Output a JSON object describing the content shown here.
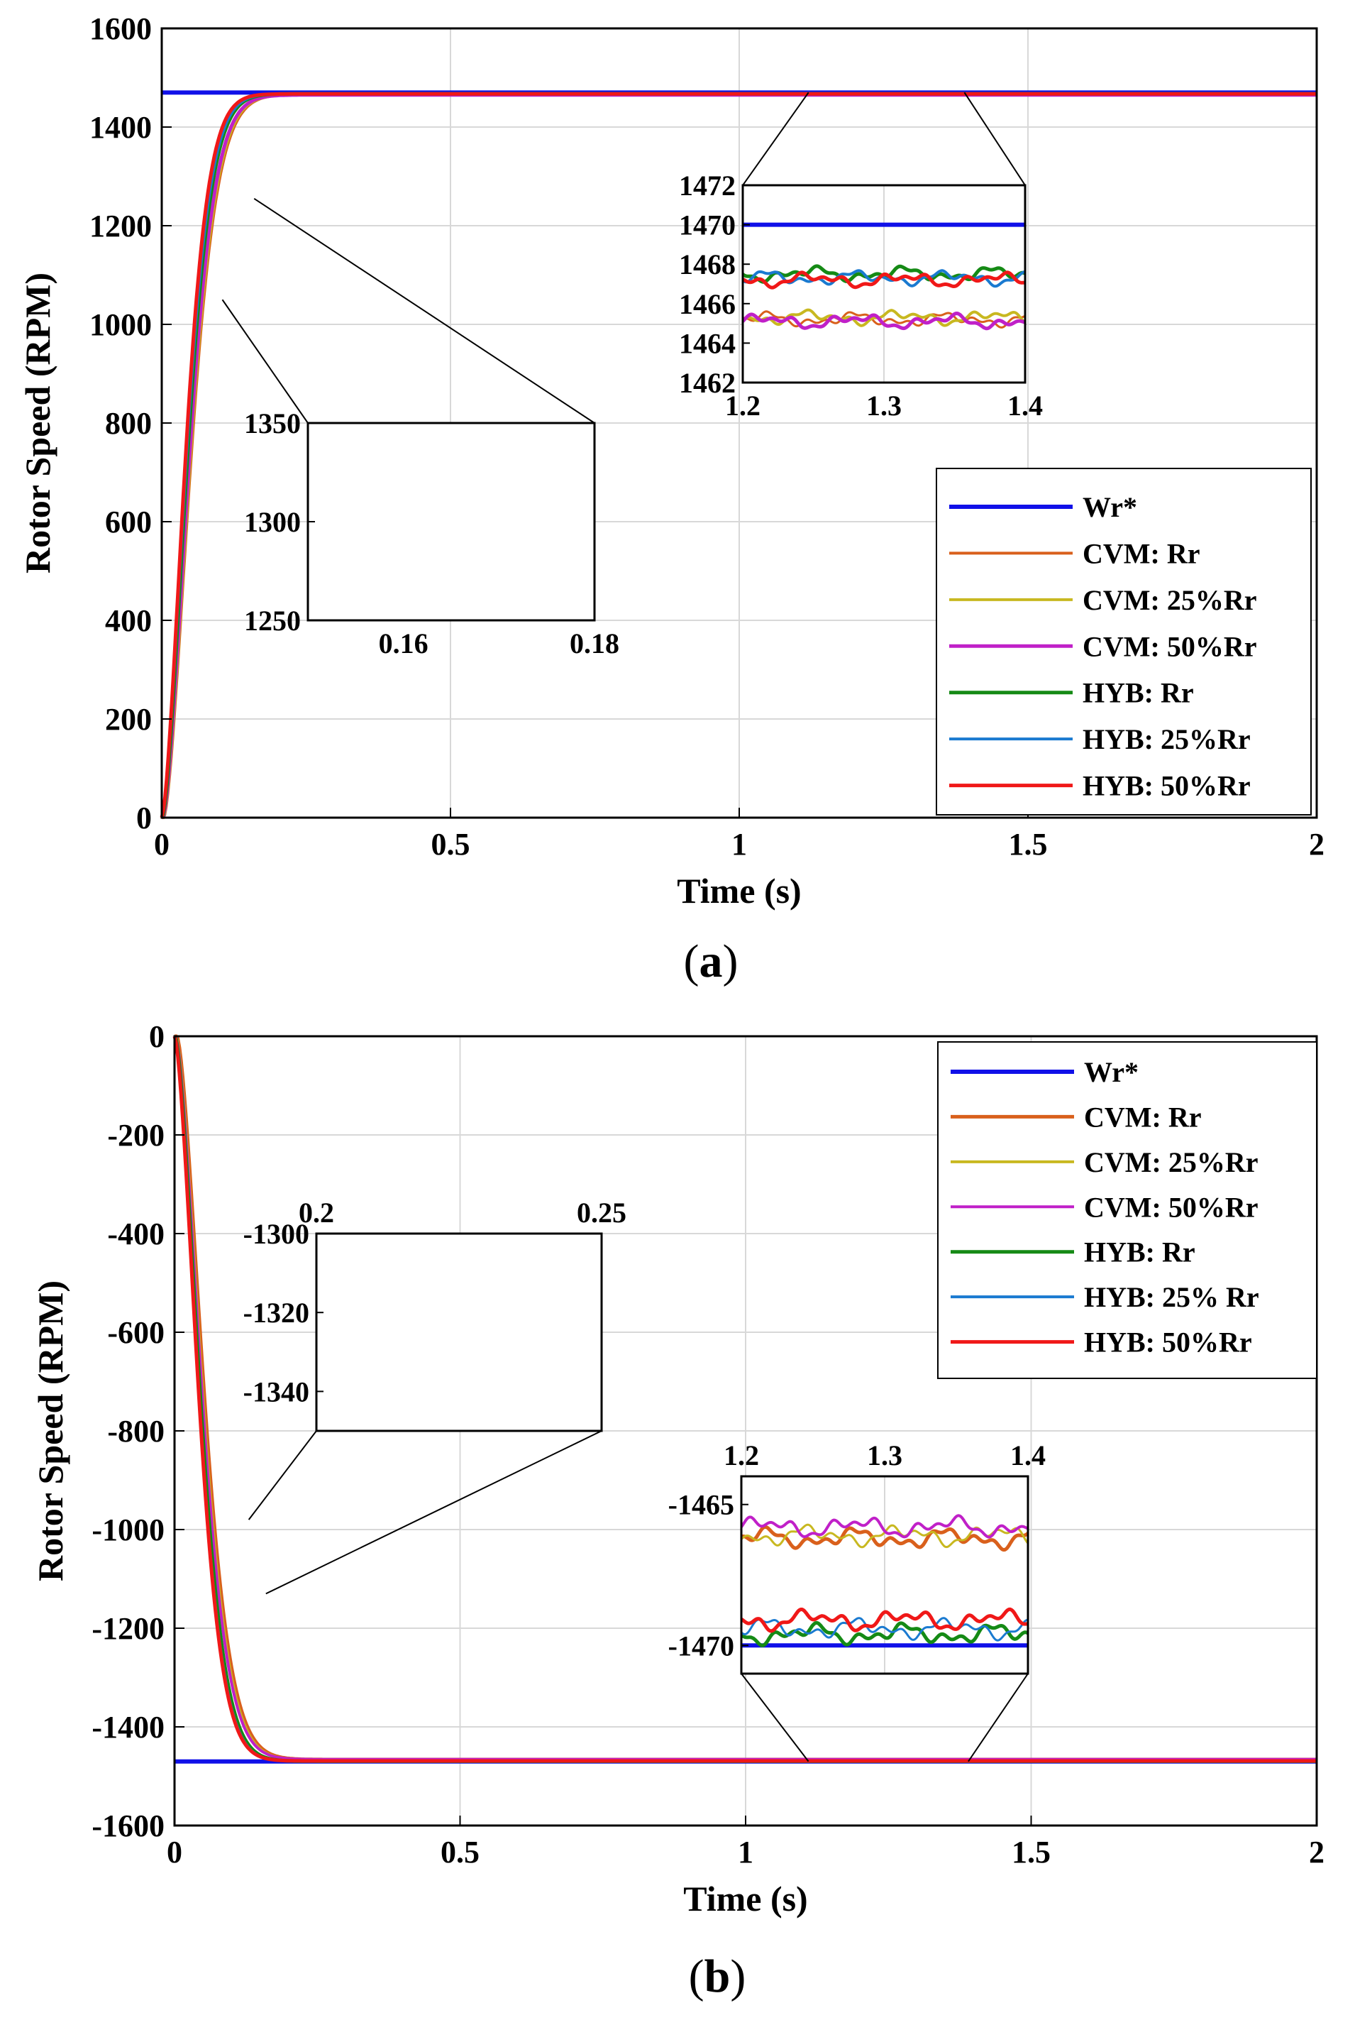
{
  "colors": {
    "wr": "#1010e8",
    "cvm_rr": "#d9601c",
    "cvm_25": "#c8b820",
    "cvm_50": "#c020c8",
    "hyb_rr": "#158a15",
    "hyb_25": "#1a7ad0",
    "hyb_50": "#f01818",
    "grid": "#d8d8d8"
  },
  "chart_data": [
    {
      "panel": "a",
      "caption_open": "(",
      "caption_letter": "a",
      "caption_close": ")",
      "type": "line",
      "xlabel": "Time (s)",
      "ylabel": "Rotor Speed (RPM)",
      "xlim": [
        0,
        2
      ],
      "ylim": [
        0,
        1600
      ],
      "xticks": [
        "0",
        "0.5",
        "1",
        "1.5",
        "2"
      ],
      "yticks": [
        "0",
        "200",
        "400",
        "600",
        "800",
        "1000",
        "1200",
        "1400",
        "1600"
      ],
      "reference": 1470,
      "series": [
        {
          "name": "Wr*",
          "color_key": "wr",
          "width": 6,
          "tau": 0,
          "steady": 1470,
          "delay": 0
        },
        {
          "name": "CVM: Rr",
          "color_key": "cvm_rr",
          "width": 3,
          "tau": 0.06,
          "steady": 1465.2,
          "delay": 0.004
        },
        {
          "name": "CVM: 25%Rr",
          "color_key": "cvm_25",
          "width": 4,
          "tau": 0.059,
          "steady": 1465.3,
          "delay": 0.003
        },
        {
          "name": "CVM: 50%Rr",
          "color_key": "cvm_50",
          "width": 5,
          "tau": 0.058,
          "steady": 1465.1,
          "delay": 0.002
        },
        {
          "name": "HYB: Rr",
          "color_key": "hyb_rr",
          "width": 5,
          "tau": 0.055,
          "steady": 1467.5,
          "delay": 0.001
        },
        {
          "name": "HYB: 25%Rr",
          "color_key": "hyb_25",
          "width": 4,
          "tau": 0.054,
          "steady": 1467.3,
          "delay": 0.0
        },
        {
          "name": "HYB: 50%Rr",
          "color_key": "hyb_50",
          "width": 5,
          "tau": 0.052,
          "steady": 1467.2,
          "delay": 0.0
        }
      ],
      "inset_transient": {
        "xlim": [
          0.15,
          0.18
        ],
        "ylim": [
          1250,
          1350
        ],
        "xticks": [
          "0.16",
          "0.18"
        ],
        "yticks": [
          "1250",
          "1300",
          "1350"
        ]
      },
      "inset_steady": {
        "xlim": [
          1.2,
          1.4
        ],
        "ylim": [
          1462,
          1472
        ],
        "xticks": [
          "1.2",
          "1.3",
          "1.4"
        ],
        "yticks": [
          "1462",
          "1464",
          "1466",
          "1468",
          "1470",
          "1472"
        ]
      }
    },
    {
      "panel": "b",
      "caption_open": "(",
      "caption_letter": "b",
      "caption_close": ")",
      "type": "line",
      "xlabel": "Time (s)",
      "ylabel": "Rotor Speed (RPM)",
      "xlim": [
        0,
        2
      ],
      "ylim": [
        -1600,
        0
      ],
      "xticks": [
        "0",
        "0.5",
        "1",
        "1.5",
        "2"
      ],
      "yticks": [
        "-1600",
        "-1400",
        "-1200",
        "-1000",
        "-800",
        "-600",
        "-400",
        "-200",
        "0"
      ],
      "reference": -1470,
      "series": [
        {
          "name": "Wr*",
          "color_key": "wr",
          "width": 6,
          "tau": 0,
          "steady": -1470,
          "delay": 0
        },
        {
          "name": "CVM: Rr",
          "color_key": "cvm_rr",
          "width": 5,
          "tau": 0.061,
          "steady": -1466.2,
          "delay": 0.004
        },
        {
          "name": "CVM: 25%Rr",
          "color_key": "cvm_25",
          "width": 3,
          "tau": 0.06,
          "steady": -1466.1,
          "delay": 0.003
        },
        {
          "name": "CVM: 50%Rr",
          "color_key": "cvm_50",
          "width": 4,
          "tau": 0.059,
          "steady": -1465.8,
          "delay": 0.002
        },
        {
          "name": "HYB: Rr",
          "color_key": "hyb_rr",
          "width": 5,
          "tau": 0.056,
          "steady": -1469.6,
          "delay": 0.001
        },
        {
          "name": "HYB: 25% Rr",
          "color_key": "hyb_25",
          "width": 3,
          "tau": 0.055,
          "steady": -1469.4,
          "delay": 0.0
        },
        {
          "name": "HYB: 50%Rr",
          "color_key": "hyb_50",
          "width": 5,
          "tau": 0.054,
          "steady": -1469.1,
          "delay": 0.0
        }
      ],
      "inset_transient": {
        "xlim": [
          0.2,
          0.25
        ],
        "ylim": [
          -1350,
          -1300
        ],
        "xticks": [
          "0.2",
          "0.25"
        ],
        "yticks": [
          "-1300",
          "-1320",
          "-1340"
        ]
      },
      "inset_steady": {
        "xlim": [
          1.2,
          1.4
        ],
        "ylim": [
          -1471,
          -1464
        ],
        "xticks": [
          "1.2",
          "1.3",
          "1.4"
        ],
        "yticks": [
          "-1465",
          "-1470"
        ]
      }
    }
  ]
}
